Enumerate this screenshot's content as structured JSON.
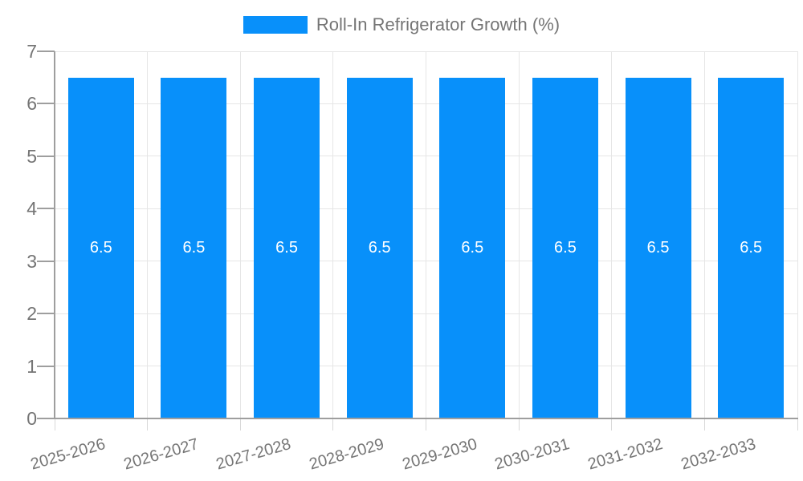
{
  "legend": {
    "label": "Roll-In Refrigerator Growth (%)"
  },
  "chart_data": {
    "type": "bar",
    "categories": [
      "2025-2026",
      "2026-2027",
      "2027-2028",
      "2028-2029",
      "2029-2030",
      "2030-2031",
      "2031-2032",
      "2032-2033"
    ],
    "series": [
      {
        "name": "Roll-In Refrigerator Growth (%)",
        "values": [
          6.5,
          6.5,
          6.5,
          6.5,
          6.5,
          6.5,
          6.5,
          6.5
        ]
      }
    ],
    "value_labels": [
      "6.5",
      "6.5",
      "6.5",
      "6.5",
      "6.5",
      "6.5",
      "6.5",
      "6.5"
    ],
    "ylim": [
      0,
      7
    ],
    "yticks": [
      "0",
      "1",
      "2",
      "3",
      "4",
      "5",
      "6",
      "7"
    ],
    "grid": true,
    "legend_position": "top",
    "bar_label_position": "center",
    "colors": {
      "bar": "#0890fa",
      "grid": "#e6e6e6",
      "axis": "#9e9e9e",
      "text": "#757575",
      "bar_label": "#ffffff",
      "background": "#ffffff"
    }
  }
}
